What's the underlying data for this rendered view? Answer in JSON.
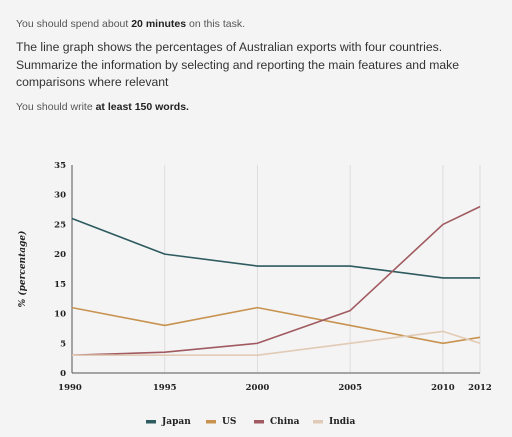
{
  "task": {
    "time_prefix": "You should spend about ",
    "time_bold": "20 minutes",
    "time_suffix": " on this task.",
    "prompt": "The line graph shows the percentages of Australian exports with four countries. Summarize the information by selecting and reporting the main features and make comparisons where relevant",
    "words_prefix": "You should write ",
    "words_bold": "at least 150 words."
  },
  "chart_data": {
    "type": "line",
    "ylabel": "% (percentage)",
    "xlabel": "",
    "ylim": [
      0,
      35
    ],
    "yticks": [
      0,
      5,
      10,
      15,
      20,
      25,
      30,
      35
    ],
    "xlim": [
      1990,
      2012
    ],
    "xticks": [
      1990,
      1995,
      2000,
      2005,
      2010,
      2012
    ],
    "grid": "vertical",
    "legend_position": "bottom",
    "series": [
      {
        "name": "Japan",
        "color": "#2e5b5f",
        "x": [
          1990,
          1995,
          2000,
          2005,
          2010,
          2012
        ],
        "y": [
          26,
          20,
          18,
          18,
          16,
          16
        ]
      },
      {
        "name": "US",
        "color": "#c89350",
        "x": [
          1990,
          1995,
          2000,
          2005,
          2010,
          2012
        ],
        "y": [
          11,
          8,
          11,
          8,
          5,
          6
        ]
      },
      {
        "name": "China",
        "color": "#a05a60",
        "x": [
          1990,
          1995,
          2000,
          2005,
          2010,
          2012
        ],
        "y": [
          3,
          3.5,
          5,
          10.5,
          25,
          28
        ]
      },
      {
        "name": "India",
        "color": "#e2cbb6",
        "x": [
          1990,
          1995,
          2000,
          2005,
          2010,
          2012
        ],
        "y": [
          3,
          3,
          3,
          5,
          7,
          5
        ]
      }
    ]
  }
}
